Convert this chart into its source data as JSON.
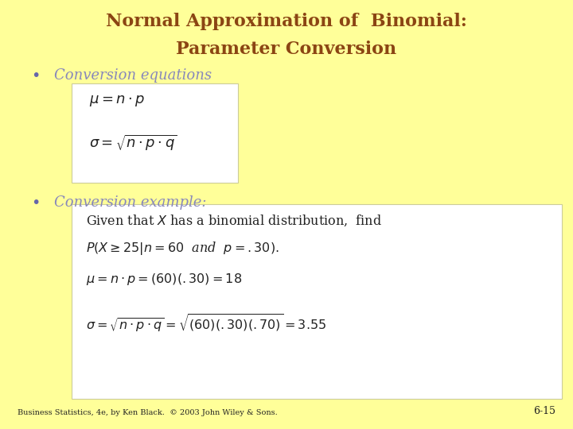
{
  "bg_color": "#FFFF99",
  "title_line1": "Normal Approximation of  Binomial:",
  "title_line2": "Parameter Conversion",
  "title_color": "#8B4513",
  "bullet_color": "#6666AA",
  "bullet1_text": "Conversion equations",
  "bullet2_text": "Conversion example:",
  "eq_box_border": "#CCCC99",
  "footer_text": "Business Statistics, 4e, by Ken Black.  © 2003 John Wiley & Sons.",
  "page_num": "6-15",
  "formula_color": "#222222",
  "bullet_text_color": "#8888BB"
}
